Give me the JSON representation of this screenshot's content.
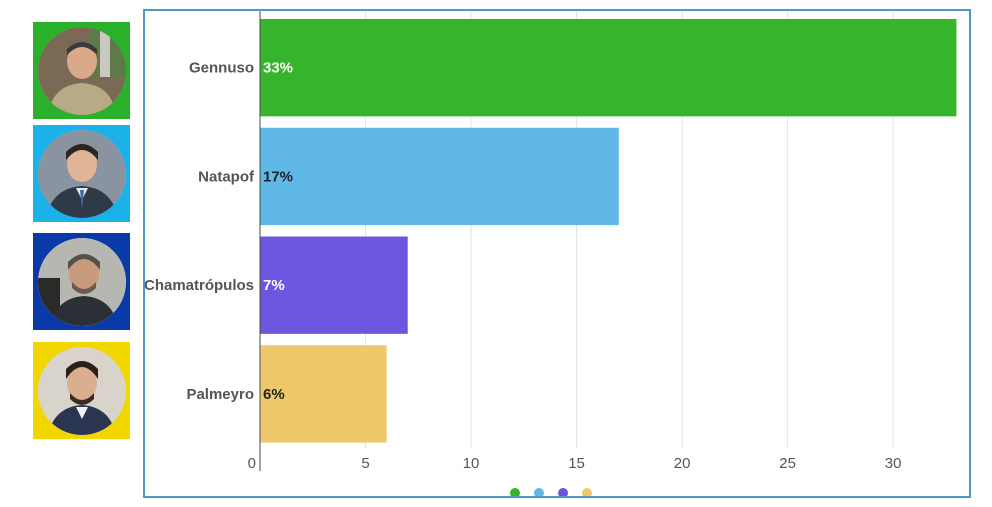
{
  "photos": [
    {
      "name": "Gennuso",
      "frame_color": "#2bb02b"
    },
    {
      "name": "Natapof",
      "frame_color": "#1ab2e8"
    },
    {
      "name": "Chamatrópulos",
      "frame_color": "#0a3aa8"
    },
    {
      "name": "Palmeyro",
      "frame_color": "#f2d600"
    }
  ],
  "chart_data": {
    "type": "bar",
    "orientation": "horizontal",
    "categories": [
      "Gennuso",
      "Natapof",
      "Chamatrópulos",
      "Palmeyro"
    ],
    "values": [
      33,
      17,
      7,
      6
    ],
    "value_labels": [
      "33%",
      "17%",
      "7%",
      "6%"
    ],
    "colors": [
      "#35b42c",
      "#5fb8e5",
      "#6d55e0",
      "#edc96b"
    ],
    "value_label_colors": [
      "#ffffff",
      "#222222",
      "#ffffff",
      "#222222"
    ],
    "xlim": [
      0,
      33.5
    ],
    "xticks": [
      0,
      5,
      10,
      15,
      20,
      25,
      30
    ],
    "grid": true,
    "legend": {
      "placement": "bottom-center",
      "markers": [
        "#35b42c",
        "#5fb8e5",
        "#6d55e0",
        "#edc96b"
      ]
    }
  }
}
